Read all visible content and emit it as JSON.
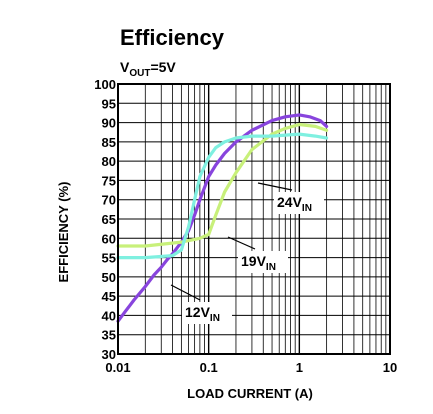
{
  "chart_data": {
    "type": "line",
    "title": "Efficiency",
    "subtitle": {
      "main": "V",
      "sub": "OUT",
      "rest": "=5V"
    },
    "xlabel": "LOAD CURRENT (A)",
    "ylabel": "EFFICIENCY (%)",
    "x_scale": "log",
    "xlim": [
      0.01,
      10
    ],
    "ylim": [
      30,
      100
    ],
    "x_ticks": [
      "0.01",
      "0.1",
      "1",
      "10"
    ],
    "y_ticks": [
      "100",
      "95",
      "90",
      "85",
      "80",
      "75",
      "70",
      "65",
      "60",
      "55",
      "50",
      "45",
      "40",
      "35",
      "30"
    ],
    "grid": true,
    "series": [
      {
        "name": "12V_IN",
        "label_main": "12V",
        "label_sub": "IN",
        "color": "#8844dd",
        "x": [
          0.01,
          0.012,
          0.015,
          0.02,
          0.025,
          0.03,
          0.035,
          0.04,
          0.05,
          0.06,
          0.07,
          0.08,
          0.1,
          0.12,
          0.15,
          0.2,
          0.3,
          0.5,
          0.7,
          1.0,
          1.3,
          1.7,
          2.0
        ],
        "y": [
          38.5,
          41,
          44,
          47.5,
          50.5,
          52.5,
          54.5,
          56,
          59,
          62,
          66,
          70,
          76,
          79,
          82,
          85,
          88,
          90.5,
          91.5,
          92,
          91.5,
          90.5,
          89
        ]
      },
      {
        "name": "19V_IN",
        "label_main": "19V",
        "label_sub": "IN",
        "color": "#c8f07a",
        "x": [
          0.01,
          0.02,
          0.05,
          0.08,
          0.1,
          0.12,
          0.15,
          0.2,
          0.3,
          0.5,
          0.7,
          1.0,
          1.5,
          2.0
        ],
        "y": [
          58,
          58,
          59,
          60,
          61,
          66,
          72,
          77,
          83,
          87,
          88.5,
          89.5,
          89,
          88
        ]
      },
      {
        "name": "24V_IN",
        "label_main": "24V",
        "label_sub": "IN",
        "color": "#7ff0e0",
        "x": [
          0.01,
          0.02,
          0.04,
          0.05,
          0.06,
          0.07,
          0.08,
          0.1,
          0.12,
          0.15,
          0.2,
          0.3,
          0.5,
          1.0,
          1.5,
          2.0
        ],
        "y": [
          55,
          55,
          55.5,
          57,
          63,
          70,
          76,
          81,
          83.5,
          85,
          86,
          86.5,
          86.5,
          87,
          86.5,
          86
        ]
      }
    ],
    "annotations": [
      {
        "series": "24V_IN",
        "text_main": "24V",
        "text_sub": "IN"
      },
      {
        "series": "19V_IN",
        "text_main": "19V",
        "text_sub": "IN"
      },
      {
        "series": "12V_IN",
        "text_main": "12V",
        "text_sub": "IN"
      }
    ]
  }
}
